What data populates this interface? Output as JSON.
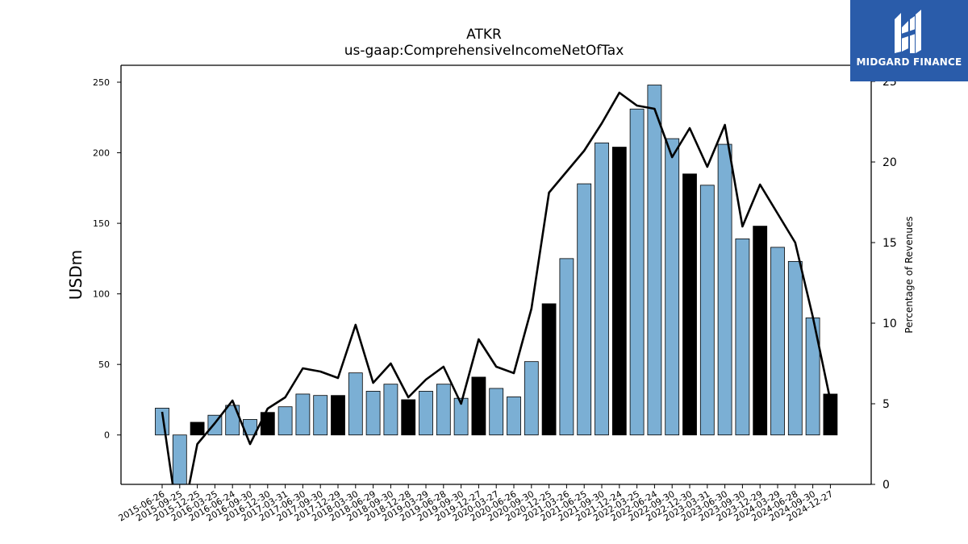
{
  "header": {
    "title": "ATKR",
    "subtitle": "us-gaap:ComprehensiveIncomeNetOfTax"
  },
  "logo": {
    "text": "MIDGARD FINANCE",
    "background": "#2a5caa"
  },
  "chart_data": {
    "type": "bar",
    "ylabel_left": "USDm",
    "ylabel_right": "Percentage of Revenues",
    "ylim_left": [
      -35,
      262
    ],
    "ylim_right": [
      0,
      26
    ],
    "yticks_left": [
      0,
      50,
      100,
      150,
      200,
      250
    ],
    "yticks_right": [
      0,
      5,
      10,
      15,
      20,
      25
    ],
    "colors": {
      "bar": "#7bafd4",
      "fiscal_year_end_bar": "#000000",
      "line": "#000000"
    },
    "categories": [
      "2015-06-26",
      "2015-09-25",
      "2015-12-25",
      "2016-03-25",
      "2016-06-24",
      "2016-09-30",
      "2016-12-30",
      "2017-03-31",
      "2017-06-30",
      "2017-09-30",
      "2017-12-29",
      "2018-03-30",
      "2018-06-29",
      "2018-09-30",
      "2018-12-28",
      "2019-03-29",
      "2019-06-28",
      "2019-09-30",
      "2019-12-27",
      "2020-03-27",
      "2020-06-26",
      "2020-09-30",
      "2020-12-25",
      "2021-03-26",
      "2021-06-25",
      "2021-09-30",
      "2021-12-24",
      "2022-03-25",
      "2022-06-24",
      "2022-09-30",
      "2022-12-30",
      "2023-03-31",
      "2023-06-30",
      "2023-09-30",
      "2023-12-29",
      "2024-03-29",
      "2024-06-28",
      "2024-09-30",
      "2024-12-27"
    ],
    "series": [
      {
        "kind": "bar",
        "axis": "left",
        "values": [
          19,
          -35,
          9,
          14,
          21,
          11,
          16,
          20,
          29,
          28,
          28,
          44,
          31,
          36,
          25,
          31,
          36,
          26,
          41,
          33,
          27,
          52,
          93,
          125,
          178,
          207,
          204,
          231,
          248,
          210,
          185,
          177,
          206,
          139,
          148,
          133,
          123,
          83,
          29
        ],
        "highlight": [
          false,
          false,
          true,
          false,
          false,
          false,
          true,
          false,
          false,
          false,
          true,
          false,
          false,
          false,
          true,
          false,
          false,
          false,
          true,
          false,
          false,
          false,
          true,
          false,
          false,
          false,
          true,
          false,
          false,
          false,
          true,
          false,
          false,
          false,
          true,
          false,
          false,
          false,
          true
        ]
      },
      {
        "kind": "line",
        "axis": "right",
        "values": [
          4.5,
          -3.0,
          2.5,
          3.8,
          5.2,
          2.5,
          4.7,
          5.4,
          7.2,
          7.0,
          6.6,
          9.9,
          6.3,
          7.5,
          5.4,
          6.5,
          7.3,
          5.0,
          9.0,
          7.3,
          6.9,
          10.9,
          18.1,
          19.4,
          20.7,
          22.4,
          24.3,
          23.5,
          23.3,
          20.3,
          22.1,
          19.7,
          22.3,
          16.0,
          18.6,
          16.8,
          15.0,
          10.4,
          5.2
        ]
      }
    ]
  }
}
